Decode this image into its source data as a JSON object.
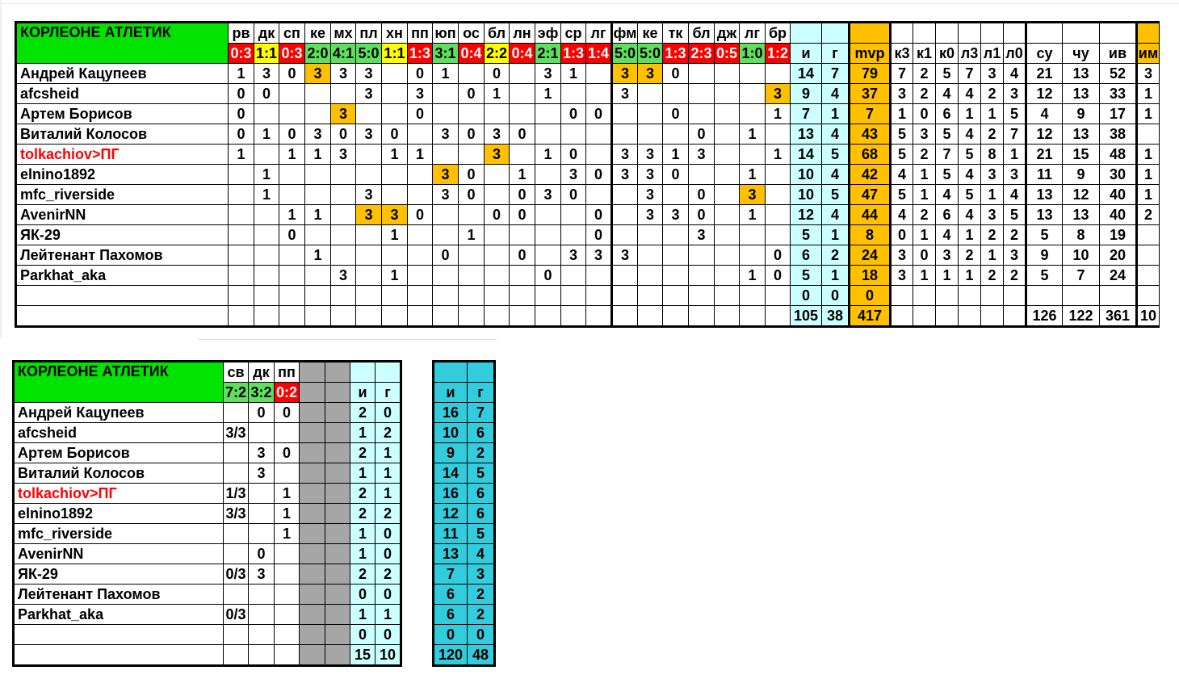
{
  "team": "КОРЛЕОНЕ АТЛЕТИК",
  "players": [
    {
      "name": "Андрей Кацупеев",
      "red": false
    },
    {
      "name": "afcsheid",
      "red": false
    },
    {
      "name": "Артем Борисов",
      "red": false
    },
    {
      "name": "Виталий Колосов",
      "red": false
    },
    {
      "name": "tolkachiov>ПГ",
      "red": true
    },
    {
      "name": "elnino1892",
      "red": false
    },
    {
      "name": "mfc_riverside",
      "red": false
    },
    {
      "name": "AvenirNN",
      "red": false
    },
    {
      "name": "ЯК-29",
      "red": false
    },
    {
      "name": "Лейтенант Пахомов",
      "red": false
    },
    {
      "name": "Parkhat_aka",
      "red": false
    }
  ],
  "main": {
    "opponents": [
      "рв",
      "дк",
      "сп",
      "ке",
      "мх",
      "пл",
      "хн",
      "пп",
      "юп",
      "ос",
      "бл",
      "лн",
      "эф",
      "ср",
      "лг",
      "фм",
      "ке",
      "тк",
      "бл",
      "дж",
      "лг",
      "бр"
    ],
    "scores": [
      "0:3",
      "1:1",
      "0:3",
      "2:0",
      "4:1",
      "5:0",
      "1:1",
      "1:3",
      "3:1",
      "0:4",
      "2:2",
      "0:4",
      "2:1",
      "1:3",
      "1:4",
      "5:0",
      "5:0",
      "1:3",
      "2:3",
      "0:5",
      "1:0",
      "1:2"
    ],
    "score_colors": [
      "r",
      "y",
      "r",
      "g",
      "g",
      "g",
      "y",
      "r",
      "g",
      "r",
      "y",
      "r",
      "g",
      "r",
      "r",
      "g",
      "g",
      "r",
      "r",
      "r",
      "g",
      "r"
    ],
    "stat_headers": [
      "и",
      "г",
      "mvp",
      "к3",
      "к1",
      "к0",
      "л3",
      "л1",
      "л0",
      "су",
      "чу",
      "ив",
      "им"
    ],
    "rows": [
      [
        "1",
        "3",
        "0",
        "3",
        "3",
        "3",
        "",
        "0",
        "1",
        "",
        "0",
        "",
        "3",
        "1",
        "",
        "3",
        "3",
        "0",
        "",
        "",
        "",
        "",
        "14",
        "7",
        "79",
        "7",
        "2",
        "5",
        "7",
        "3",
        "4",
        "21",
        "13",
        "52",
        "3"
      ],
      [
        "0",
        "0",
        "",
        "",
        "",
        "3",
        "",
        "3",
        "",
        "0",
        "1",
        "",
        "1",
        "",
        "",
        "3",
        "",
        "",
        "",
        "",
        "",
        "3",
        "9",
        "4",
        "37",
        "3",
        "2",
        "4",
        "4",
        "2",
        "3",
        "12",
        "13",
        "33",
        "1"
      ],
      [
        "0",
        "",
        "",
        "",
        "3",
        "",
        "",
        "0",
        "",
        "",
        "",
        "",
        "",
        "0",
        "0",
        "",
        "",
        "0",
        "",
        "",
        "",
        "1",
        "7",
        "1",
        "7",
        "1",
        "0",
        "6",
        "1",
        "1",
        "5",
        "4",
        "9",
        "17",
        "1"
      ],
      [
        "0",
        "1",
        "0",
        "3",
        "0",
        "3",
        "0",
        "",
        "3",
        "0",
        "3",
        "0",
        "",
        "",
        "",
        "",
        "",
        "",
        "0",
        "",
        "1",
        "",
        "13",
        "4",
        "43",
        "5",
        "3",
        "5",
        "4",
        "2",
        "7",
        "12",
        "13",
        "38",
        ""
      ],
      [
        "1",
        "",
        "1",
        "1",
        "3",
        "",
        "1",
        "1",
        "",
        "",
        "3",
        "",
        "1",
        "0",
        "",
        "3",
        "3",
        "1",
        "3",
        "",
        "",
        "1",
        "14",
        "5",
        "68",
        "5",
        "2",
        "7",
        "5",
        "8",
        "1",
        "21",
        "15",
        "48",
        "1"
      ],
      [
        "",
        "1",
        "",
        "",
        "",
        "",
        "",
        "",
        "3",
        "0",
        "",
        "1",
        "",
        "3",
        "0",
        "3",
        "3",
        "0",
        "",
        "",
        "1",
        "",
        "10",
        "4",
        "42",
        "4",
        "1",
        "5",
        "4",
        "3",
        "3",
        "11",
        "9",
        "30",
        "1"
      ],
      [
        "",
        "1",
        "",
        "",
        "",
        "3",
        "",
        "",
        "3",
        "0",
        "",
        "0",
        "3",
        "0",
        "",
        "",
        "3",
        "",
        "0",
        "",
        "3",
        "",
        "10",
        "5",
        "47",
        "5",
        "1",
        "4",
        "5",
        "1",
        "4",
        "13",
        "12",
        "40",
        "1"
      ],
      [
        "",
        "",
        "1",
        "1",
        "",
        "3",
        "3",
        "0",
        "",
        "",
        "0",
        "0",
        "",
        "",
        "0",
        "",
        "3",
        "3",
        "0",
        "",
        "1",
        "",
        "12",
        "4",
        "44",
        "4",
        "2",
        "6",
        "4",
        "3",
        "5",
        "13",
        "13",
        "40",
        "2"
      ],
      [
        "",
        "",
        "0",
        "",
        "",
        "",
        "1",
        "",
        "",
        "1",
        "",
        "",
        "",
        "",
        "0",
        "",
        "",
        "",
        "3",
        "",
        "",
        "",
        "5",
        "1",
        "8",
        "0",
        "1",
        "4",
        "1",
        "2",
        "2",
        "5",
        "8",
        "19",
        ""
      ],
      [
        "",
        "",
        "",
        "1",
        "",
        "",
        "",
        "",
        "0",
        "",
        "",
        "0",
        "",
        "3",
        "3",
        "3",
        "",
        "",
        "",
        "",
        "",
        "0",
        "6",
        "2",
        "24",
        "3",
        "0",
        "3",
        "2",
        "1",
        "3",
        "9",
        "10",
        "20",
        ""
      ],
      [
        "",
        "",
        "",
        "",
        "3",
        "",
        "1",
        "",
        "",
        "",
        "",
        "",
        "0",
        "",
        "",
        "",
        "",
        "",
        "",
        "",
        "1",
        "0",
        "5",
        "1",
        "18",
        "3",
        "1",
        "1",
        "1",
        "2",
        "2",
        "5",
        "7",
        "24",
        ""
      ]
    ],
    "empty_row_stats": [
      "0",
      "0",
      "0"
    ],
    "totals": {
      "i": "105",
      "g": "38",
      "mvp": "417",
      "su": "126",
      "chu": "122",
      "iv": "361",
      "im": "10"
    }
  },
  "cup": {
    "opponents": [
      "св",
      "дк",
      "пп"
    ],
    "scores": [
      "7:2",
      "3:2",
      "0:2"
    ],
    "score_colors": [
      "g",
      "g",
      "r"
    ],
    "stat_headers": [
      "и",
      "г"
    ],
    "rows": [
      [
        "",
        "0",
        "0",
        "2",
        "0"
      ],
      [
        "3/3",
        "",
        "",
        "1",
        "2"
      ],
      [
        "",
        "3",
        "0",
        "2",
        "1"
      ],
      [
        "",
        "3",
        "",
        "1",
        "1"
      ],
      [
        "1/3",
        "",
        "1",
        "2",
        "1"
      ],
      [
        "3/3",
        "",
        "1",
        "2",
        "2"
      ],
      [
        "",
        "",
        "1",
        "1",
        "0"
      ],
      [
        "",
        "0",
        "",
        "1",
        "0"
      ],
      [
        "0/3",
        "3",
        "",
        "2",
        "2"
      ],
      [
        "",
        "",
        "",
        "0",
        "0"
      ],
      [
        "0/3",
        "",
        "",
        "1",
        "1"
      ]
    ],
    "empty_row_stats": [
      "0",
      "0"
    ],
    "totals": [
      "15",
      "10"
    ]
  },
  "overall": {
    "stat_headers": [
      "и",
      "г"
    ],
    "rows": [
      [
        "16",
        "7"
      ],
      [
        "10",
        "6"
      ],
      [
        "9",
        "2"
      ],
      [
        "14",
        "5"
      ],
      [
        "16",
        "6"
      ],
      [
        "12",
        "6"
      ],
      [
        "11",
        "5"
      ],
      [
        "13",
        "4"
      ],
      [
        "7",
        "3"
      ],
      [
        "6",
        "2"
      ],
      [
        "6",
        "2"
      ]
    ],
    "empty_row": [
      "0",
      "0"
    ],
    "totals": [
      "120",
      "48"
    ]
  },
  "highlights": [
    [
      0,
      3
    ],
    [
      0,
      15
    ],
    [
      0,
      16
    ],
    [
      1,
      21
    ],
    [
      2,
      4
    ],
    [
      4,
      10
    ],
    [
      5,
      8
    ],
    [
      6,
      20
    ],
    [
      7,
      5
    ],
    [
      7,
      6
    ]
  ]
}
